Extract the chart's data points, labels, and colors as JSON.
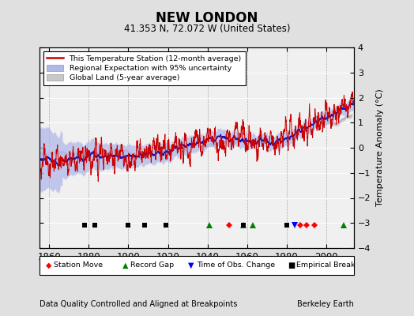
{
  "title": "NEW LONDON",
  "subtitle": "41.353 N, 72.072 W (United States)",
  "xlabel_note": "Data Quality Controlled and Aligned at Breakpoints",
  "credit": "Berkeley Earth",
  "ylabel": "Temperature Anomaly (°C)",
  "xlim": [
    1855,
    2014
  ],
  "ylim": [
    -4,
    4
  ],
  "yticks": [
    -4,
    -3,
    -2,
    -1,
    0,
    1,
    2,
    3,
    4
  ],
  "xticks": [
    1860,
    1880,
    1900,
    1920,
    1940,
    1960,
    1980,
    2000
  ],
  "station_moves": [
    1951,
    1987,
    1990,
    1994
  ],
  "record_gaps": [
    1941,
    1958,
    1963,
    2009
  ],
  "obs_changes": [
    1984
  ],
  "empirical_breaks": [
    1878,
    1883,
    1900,
    1908,
    1919,
    1958,
    1980
  ],
  "bg_color": "#e0e0e0",
  "plot_bg_color": "#f0f0f0",
  "uncertainty_color": "#b0b8e8",
  "global_land_color": "#c8c8c8",
  "station_line_color": "#cc0000",
  "regional_line_color": "#1111bb",
  "marker_y": -3.1,
  "legend_items": [
    "This Temperature Station (12-month average)",
    "Regional Expectation with 95% uncertainty",
    "Global Land (5-year average)"
  ]
}
